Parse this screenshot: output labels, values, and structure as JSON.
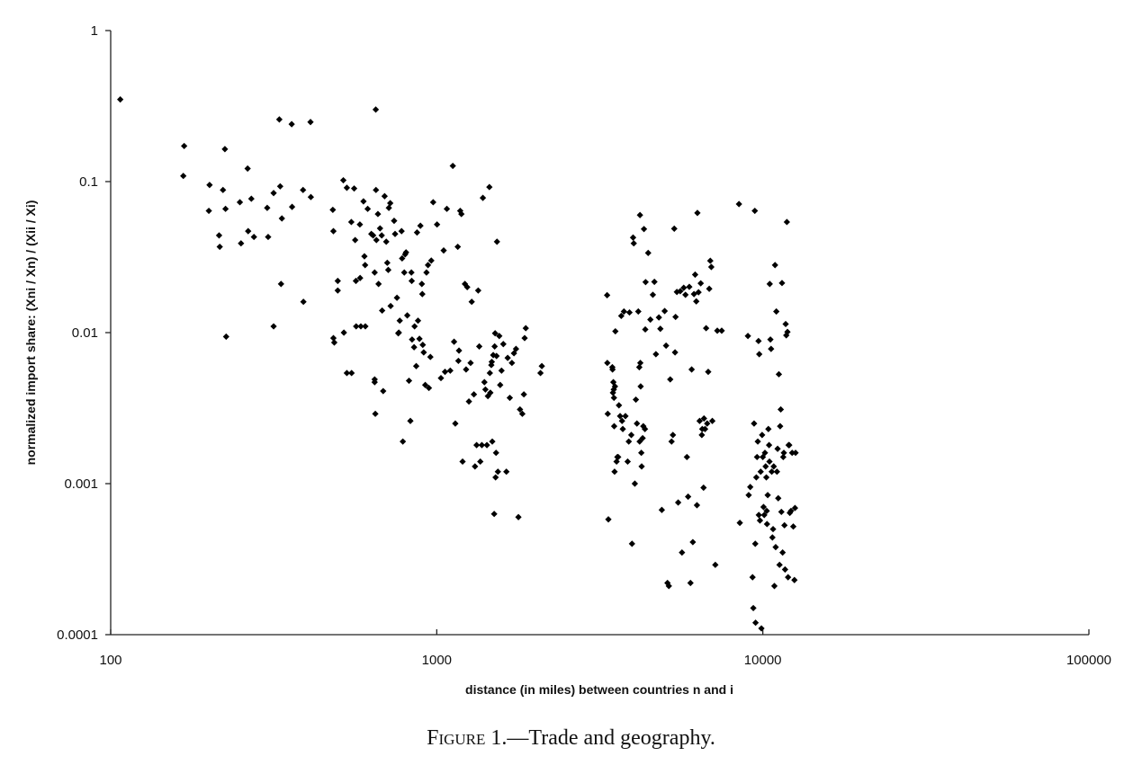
{
  "chart_data": {
    "type": "scatter",
    "xlabel": "distance (in miles) between countries n and i",
    "ylabel": "normalized import share: (Xni / Xn) / (Xii / Xi)",
    "x_scale": "log",
    "y_scale": "log",
    "xlim": [
      100,
      100000
    ],
    "ylim": [
      0.0001,
      1
    ],
    "x_ticks": [
      "100",
      "1000",
      "10000",
      "100000"
    ],
    "y_ticks": [
      "1",
      "0.1",
      "0.01",
      "0.001",
      "0.0001"
    ],
    "grid": false,
    "legend": "none",
    "marker": "diamond",
    "color": "#000000",
    "points": [
      [
        107,
        0.35
      ],
      [
        168,
        0.172
      ],
      [
        167,
        0.109
      ],
      [
        201,
        0.095
      ],
      [
        200,
        0.064
      ],
      [
        215,
        0.044
      ],
      [
        216,
        0.037
      ],
      [
        224,
        0.164
      ],
      [
        221,
        0.088
      ],
      [
        225,
        0.066
      ],
      [
        226,
        0.0094
      ],
      [
        249,
        0.073
      ],
      [
        251,
        0.039
      ],
      [
        263,
        0.122
      ],
      [
        264,
        0.047
      ],
      [
        275,
        0.043
      ],
      [
        270,
        0.077
      ],
      [
        302,
        0.067
      ],
      [
        304,
        0.043
      ],
      [
        316,
        0.084
      ],
      [
        316,
        0.011
      ],
      [
        329,
        0.258
      ],
      [
        331,
        0.093
      ],
      [
        333,
        0.021
      ],
      [
        335,
        0.057
      ],
      [
        359,
        0.24
      ],
      [
        360,
        0.068
      ],
      [
        389,
        0.088
      ],
      [
        390,
        0.016
      ],
      [
        410,
        0.248
      ],
      [
        411,
        0.079
      ],
      [
        480,
        0.065
      ],
      [
        482,
        0.047
      ],
      [
        482,
        0.0092
      ],
      [
        485,
        0.0086
      ],
      [
        497,
        0.022
      ],
      [
        497,
        0.019
      ],
      [
        517,
        0.102
      ],
      [
        519,
        0.01
      ],
      [
        530,
        0.091
      ],
      [
        530,
        0.0054
      ],
      [
        547,
        0.054
      ],
      [
        548,
        0.0054
      ],
      [
        558,
        0.09
      ],
      [
        562,
        0.041
      ],
      [
        565,
        0.022
      ],
      [
        566,
        0.011
      ],
      [
        581,
        0.052
      ],
      [
        582,
        0.023
      ],
      [
        585,
        0.011
      ],
      [
        596,
        0.074
      ],
      [
        600,
        0.032
      ],
      [
        603,
        0.028
      ],
      [
        604,
        0.011
      ],
      [
        614,
        0.066
      ],
      [
        630,
        0.045
      ],
      [
        638,
        0.044
      ],
      [
        645,
        0.025
      ],
      [
        645,
        0.0049
      ],
      [
        645,
        0.0047
      ],
      [
        648,
        0.0029
      ],
      [
        650,
        0.3
      ],
      [
        651,
        0.088
      ],
      [
        653,
        0.041
      ],
      [
        660,
        0.061
      ],
      [
        663,
        0.021
      ],
      [
        670,
        0.049
      ],
      [
        678,
        0.044
      ],
      [
        680,
        0.014
      ],
      [
        685,
        0.0041
      ],
      [
        692,
        0.08
      ],
      [
        700,
        0.04
      ],
      [
        705,
        0.029
      ],
      [
        710,
        0.026
      ],
      [
        713,
        0.067
      ],
      [
        720,
        0.072
      ],
      [
        722,
        0.015
      ],
      [
        740,
        0.055
      ],
      [
        745,
        0.045
      ],
      [
        755,
        0.017
      ],
      [
        762,
        0.0099
      ],
      [
        765,
        0.01
      ],
      [
        770,
        0.012
      ],
      [
        780,
        0.047
      ],
      [
        783,
        0.031
      ],
      [
        787,
        0.0019
      ],
      [
        795,
        0.025
      ],
      [
        800,
        0.033
      ],
      [
        805,
        0.034
      ],
      [
        812,
        0.013
      ],
      [
        822,
        0.0048
      ],
      [
        830,
        0.0026
      ],
      [
        836,
        0.025
      ],
      [
        838,
        0.022
      ],
      [
        840,
        0.009
      ],
      [
        852,
        0.008
      ],
      [
        855,
        0.011
      ],
      [
        865,
        0.006
      ],
      [
        870,
        0.046
      ],
      [
        876,
        0.012
      ],
      [
        885,
        0.0091
      ],
      [
        891,
        0.051
      ],
      [
        900,
        0.021
      ],
      [
        903,
        0.018
      ],
      [
        906,
        0.0083
      ],
      [
        912,
        0.0074
      ],
      [
        922,
        0.0045
      ],
      [
        930,
        0.025
      ],
      [
        940,
        0.028
      ],
      [
        946,
        0.0043
      ],
      [
        956,
        0.0069
      ],
      [
        962,
        0.03
      ],
      [
        975,
        0.073
      ],
      [
        1002,
        0.052
      ],
      [
        1030,
        0.005
      ],
      [
        1050,
        0.035
      ],
      [
        1060,
        0.0055
      ],
      [
        1074,
        0.066
      ],
      [
        1100,
        0.0056
      ],
      [
        1120,
        0.127
      ],
      [
        1130,
        0.0087
      ],
      [
        1140,
        0.0025
      ],
      [
        1160,
        0.037
      ],
      [
        1165,
        0.0065
      ],
      [
        1170,
        0.0076
      ],
      [
        1180,
        0.064
      ],
      [
        1190,
        0.061
      ],
      [
        1200,
        0.0014
      ],
      [
        1220,
        0.021
      ],
      [
        1230,
        0.0057
      ],
      [
        1240,
        0.02
      ],
      [
        1255,
        0.0035
      ],
      [
        1270,
        0.0063
      ],
      [
        1280,
        0.016
      ],
      [
        1300,
        0.0039
      ],
      [
        1310,
        0.0013
      ],
      [
        1325,
        0.0018
      ],
      [
        1340,
        0.019
      ],
      [
        1350,
        0.0081
      ],
      [
        1360,
        0.0014
      ],
      [
        1375,
        0.0018
      ],
      [
        1385,
        0.078
      ],
      [
        1400,
        0.0047
      ],
      [
        1410,
        0.0042
      ],
      [
        1425,
        0.0018
      ],
      [
        1435,
        0.0038
      ],
      [
        1450,
        0.092
      ],
      [
        1455,
        0.0054
      ],
      [
        1460,
        0.004
      ],
      [
        1470,
        0.0061
      ],
      [
        1475,
        0.0064
      ],
      [
        1480,
        0.0019
      ],
      [
        1490,
        0.0071
      ],
      [
        1500,
        0.00063
      ],
      [
        1505,
        0.0081
      ],
      [
        1510,
        0.0099
      ],
      [
        1515,
        0.0011
      ],
      [
        1520,
        0.0016
      ],
      [
        1525,
        0.007
      ],
      [
        1530,
        0.04
      ],
      [
        1540,
        0.0012
      ],
      [
        1555,
        0.0095
      ],
      [
        1565,
        0.0045
      ],
      [
        1580,
        0.0056
      ],
      [
        1600,
        0.0084
      ],
      [
        1635,
        0.0012
      ],
      [
        1650,
        0.0068
      ],
      [
        1675,
        0.0037
      ],
      [
        1700,
        0.0063
      ],
      [
        1725,
        0.0073
      ],
      [
        1750,
        0.0078
      ],
      [
        1780,
        0.0006
      ],
      [
        1800,
        0.0031
      ],
      [
        1830,
        0.0029
      ],
      [
        1850,
        0.0039
      ],
      [
        1860,
        0.0092
      ],
      [
        1875,
        0.0107
      ],
      [
        2080,
        0.0054
      ],
      [
        2100,
        0.006
      ],
      [
        3330,
        0.0177
      ],
      [
        3335,
        0.0063
      ],
      [
        3345,
        0.0029
      ],
      [
        3360,
        0.00058
      ],
      [
        3455,
        0.0059
      ],
      [
        3460,
        0.0057
      ],
      [
        3470,
        0.004
      ],
      [
        3480,
        0.0047
      ],
      [
        3490,
        0.0042
      ],
      [
        3495,
        0.0037
      ],
      [
        3500,
        0.0024
      ],
      [
        3510,
        0.0012
      ],
      [
        3520,
        0.0044
      ],
      [
        3530,
        0.0102
      ],
      [
        3560,
        0.0014
      ],
      [
        3580,
        0.0015
      ],
      [
        3600,
        0.0015
      ],
      [
        3620,
        0.0033
      ],
      [
        3650,
        0.0028
      ],
      [
        3680,
        0.0129
      ],
      [
        3700,
        0.0026
      ],
      [
        3720,
        0.0023
      ],
      [
        3750,
        0.0138
      ],
      [
        3790,
        0.0028
      ],
      [
        3850,
        0.0014
      ],
      [
        3880,
        0.0019
      ],
      [
        3900,
        0.0136
      ],
      [
        3950,
        0.0021
      ],
      [
        3970,
        0.0004
      ],
      [
        4000,
        0.0426
      ],
      [
        4020,
        0.039
      ],
      [
        4050,
        0.001
      ],
      [
        4080,
        0.0036
      ],
      [
        4110,
        0.0025
      ],
      [
        4150,
        0.0138
      ],
      [
        4180,
        0.0059
      ],
      [
        4190,
        0.0019
      ],
      [
        4200,
        0.06
      ],
      [
        4210,
        0.0063
      ],
      [
        4220,
        0.0044
      ],
      [
        4240,
        0.0016
      ],
      [
        4250,
        0.0013
      ],
      [
        4280,
        0.002
      ],
      [
        4300,
        0.0024
      ],
      [
        4320,
        0.0485
      ],
      [
        4350,
        0.0023
      ],
      [
        4360,
        0.0105
      ],
      [
        4370,
        0.0216
      ],
      [
        4450,
        0.0337
      ],
      [
        4520,
        0.0122
      ],
      [
        4600,
        0.0178
      ],
      [
        4650,
        0.0217
      ],
      [
        4700,
        0.0072
      ],
      [
        4800,
        0.0126
      ],
      [
        4850,
        0.0106
      ],
      [
        4900,
        0.00067
      ],
      [
        5000,
        0.0139
      ],
      [
        5050,
        0.0082
      ],
      [
        5100,
        0.00022
      ],
      [
        5150,
        0.00021
      ],
      [
        5200,
        0.0049
      ],
      [
        5250,
        0.0019
      ],
      [
        5300,
        0.0021
      ],
      [
        5350,
        0.0488
      ],
      [
        5380,
        0.0074
      ],
      [
        5400,
        0.0127
      ],
      [
        5450,
        0.0186
      ],
      [
        5500,
        0.00075
      ],
      [
        5580,
        0.0188
      ],
      [
        5650,
        0.00035
      ],
      [
        5720,
        0.0198
      ],
      [
        5790,
        0.0178
      ],
      [
        5850,
        0.0015
      ],
      [
        5900,
        0.00082
      ],
      [
        5950,
        0.0201
      ],
      [
        6000,
        0.00022
      ],
      [
        6050,
        0.0057
      ],
      [
        6100,
        0.00041
      ],
      [
        6150,
        0.018
      ],
      [
        6200,
        0.0242
      ],
      [
        6250,
        0.0161
      ],
      [
        6280,
        0.00072
      ],
      [
        6300,
        0.062
      ],
      [
        6350,
        0.0185
      ],
      [
        6400,
        0.0026
      ],
      [
        6450,
        0.0212
      ],
      [
        6500,
        0.0021
      ],
      [
        6520,
        0.0023
      ],
      [
        6580,
        0.00094
      ],
      [
        6600,
        0.0027
      ],
      [
        6650,
        0.0023
      ],
      [
        6700,
        0.0107
      ],
      [
        6750,
        0.0025
      ],
      [
        6800,
        0.0055
      ],
      [
        6850,
        0.0195
      ],
      [
        6900,
        0.0299
      ],
      [
        6950,
        0.0272
      ],
      [
        7000,
        0.0026
      ],
      [
        7150,
        0.00029
      ],
      [
        7250,
        0.0103
      ],
      [
        7480,
        0.0103
      ],
      [
        8450,
        0.071
      ],
      [
        8500,
        0.00055
      ],
      [
        9000,
        0.0095
      ],
      [
        9050,
        0.00084
      ],
      [
        9150,
        0.00095
      ],
      [
        9300,
        0.00024
      ],
      [
        9350,
        0.00015
      ],
      [
        9400,
        0.0025
      ],
      [
        9450,
        0.064
      ],
      [
        9480,
        0.0004
      ],
      [
        9500,
        0.00012
      ],
      [
        9550,
        0.0011
      ],
      [
        9600,
        0.0015
      ],
      [
        9650,
        0.0019
      ],
      [
        9700,
        0.0088
      ],
      [
        9720,
        0.00062
      ],
      [
        9750,
        0.0072
      ],
      [
        9800,
        0.00057
      ],
      [
        9850,
        0.0012
      ],
      [
        9900,
        0.00011
      ],
      [
        9950,
        0.0021
      ],
      [
        10000,
        0.0015
      ],
      [
        10050,
        0.0007
      ],
      [
        10100,
        0.00062
      ],
      [
        10150,
        0.0016
      ],
      [
        10200,
        0.0013
      ],
      [
        10250,
        0.0011
      ],
      [
        10280,
        0.00066
      ],
      [
        10300,
        0.00054
      ],
      [
        10350,
        0.00084
      ],
      [
        10400,
        0.0023
      ],
      [
        10450,
        0.0018
      ],
      [
        10480,
        0.0014
      ],
      [
        10500,
        0.021
      ],
      [
        10550,
        0.009
      ],
      [
        10600,
        0.0078
      ],
      [
        10650,
        0.0012
      ],
      [
        10700,
        0.00044
      ],
      [
        10750,
        0.0005
      ],
      [
        10800,
        0.0013
      ],
      [
        10850,
        0.00021
      ],
      [
        10900,
        0.028
      ],
      [
        10950,
        0.00038
      ],
      [
        11000,
        0.0138
      ],
      [
        11050,
        0.0012
      ],
      [
        11100,
        0.0017
      ],
      [
        11150,
        0.0008
      ],
      [
        11200,
        0.0053
      ],
      [
        11250,
        0.00029
      ],
      [
        11300,
        0.0024
      ],
      [
        11350,
        0.0031
      ],
      [
        11400,
        0.00065
      ],
      [
        11450,
        0.0213
      ],
      [
        11500,
        0.00035
      ],
      [
        11550,
        0.0015
      ],
      [
        11600,
        0.0016
      ],
      [
        11650,
        0.00053
      ],
      [
        11700,
        0.00027
      ],
      [
        11750,
        0.0114
      ],
      [
        11800,
        0.0096
      ],
      [
        11850,
        0.054
      ],
      [
        11900,
        0.0101
      ],
      [
        11950,
        0.00024
      ],
      [
        12000,
        0.0018
      ],
      [
        12050,
        0.0018
      ],
      [
        12100,
        0.00064
      ],
      [
        12200,
        0.00066
      ],
      [
        12300,
        0.0016
      ],
      [
        12400,
        0.00052
      ],
      [
        12500,
        0.00023
      ],
      [
        12550,
        0.00069
      ],
      [
        12600,
        0.0016
      ]
    ]
  },
  "caption": {
    "prefix": "F",
    "smallcaps": "igure",
    "rest": " 1.—Trade and geography."
  }
}
